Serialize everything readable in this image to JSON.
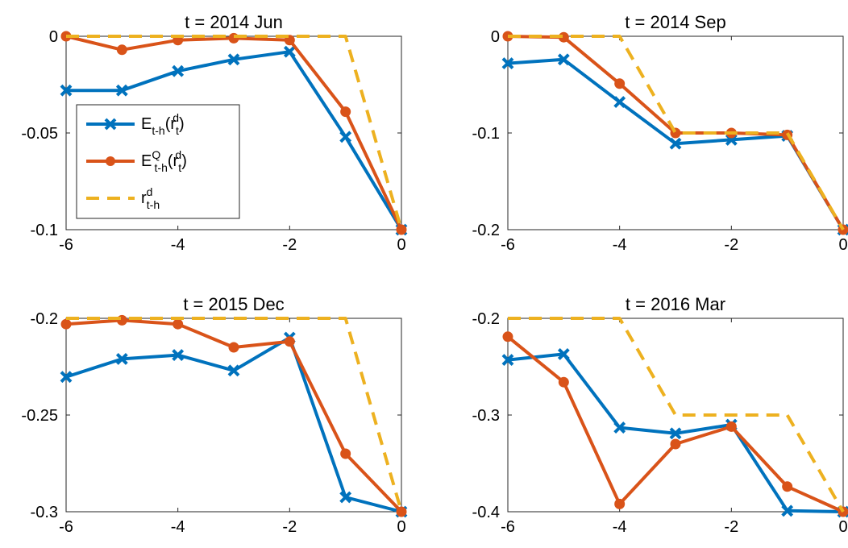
{
  "chart_data": [
    {
      "type": "line",
      "title": "t = 2014 Jun",
      "x": [
        -6,
        -5,
        -4,
        -3,
        -2,
        -1,
        0
      ],
      "series": [
        {
          "name": "E_{t-h}(r_{t}^{d})",
          "color": "#0072BD",
          "marker": "x",
          "linestyle": "-",
          "values": [
            -0.028,
            -0.028,
            -0.018,
            -0.012,
            -0.008,
            -0.052,
            -0.1
          ]
        },
        {
          "name": "E^{Q}_{t-h}(r_{t}^{d})",
          "color": "#D95319",
          "marker": "o",
          "linestyle": "-",
          "values": [
            0,
            -0.007,
            -0.002,
            -0.001,
            -0.002,
            -0.039,
            -0.1
          ]
        },
        {
          "name": "r^{d}_{t-h}",
          "color": "#EDB120",
          "marker": "none",
          "linestyle": "--",
          "values": [
            0,
            0,
            0,
            0,
            0,
            0,
            -0.1
          ]
        }
      ],
      "xlim": [
        -6,
        0
      ],
      "xticks": [
        -6,
        -4,
        -2,
        0
      ],
      "ylim": [
        -0.1,
        0
      ],
      "yticks": [
        -0.1,
        -0.05,
        0
      ],
      "legend": "west"
    },
    {
      "type": "line",
      "title": "t = 2014 Sep",
      "x": [
        -6,
        -5,
        -4,
        -3,
        -2,
        -1,
        0
      ],
      "series": [
        {
          "color": "#0072BD",
          "marker": "x",
          "linestyle": "-",
          "values": [
            -0.028,
            -0.024,
            -0.068,
            -0.111,
            -0.107,
            -0.103,
            -0.2
          ]
        },
        {
          "color": "#D95319",
          "marker": "o",
          "linestyle": "-",
          "values": [
            0,
            -0.001,
            -0.049,
            -0.1,
            -0.1,
            -0.102,
            -0.2
          ]
        },
        {
          "color": "#EDB120",
          "marker": "none",
          "linestyle": "--",
          "values": [
            0,
            0,
            0,
            -0.1,
            -0.1,
            -0.1,
            -0.2
          ]
        }
      ],
      "xlim": [
        -6,
        0
      ],
      "xticks": [
        -6,
        -4,
        -2,
        0
      ],
      "ylim": [
        -0.2,
        0
      ],
      "yticks": [
        -0.2,
        -0.1,
        0
      ]
    },
    {
      "type": "line",
      "title": "t = 2015 Dec",
      "x": [
        -6,
        -5,
        -4,
        -3,
        -2,
        -1,
        0
      ],
      "series": [
        {
          "color": "#0072BD",
          "marker": "x",
          "linestyle": "-",
          "values": [
            -0.2303,
            -0.221,
            -0.219,
            -0.227,
            -0.21,
            -0.2925,
            -0.3
          ]
        },
        {
          "color": "#D95319",
          "marker": "o",
          "linestyle": "-",
          "values": [
            -0.203,
            -0.201,
            -0.203,
            -0.215,
            -0.212,
            -0.27,
            -0.3
          ]
        },
        {
          "color": "#EDB120",
          "marker": "none",
          "linestyle": "--",
          "values": [
            -0.2,
            -0.2,
            -0.2,
            -0.2,
            -0.2,
            -0.2,
            -0.3
          ]
        }
      ],
      "xlim": [
        -6,
        0
      ],
      "xticks": [
        -6,
        -4,
        -2,
        0
      ],
      "ylim": [
        -0.3,
        -0.2
      ],
      "yticks": [
        -0.3,
        -0.25,
        -0.2
      ]
    },
    {
      "type": "line",
      "title": "t = 2016 Mar",
      "x": [
        -6,
        -5,
        -4,
        -3,
        -2,
        -1,
        0
      ],
      "series": [
        {
          "color": "#0072BD",
          "marker": "x",
          "linestyle": "-",
          "values": [
            -0.243,
            -0.237,
            -0.313,
            -0.319,
            -0.31,
            -0.399,
            -0.4
          ]
        },
        {
          "color": "#D95319",
          "marker": "o",
          "linestyle": "-",
          "values": [
            -0.219,
            -0.266,
            -0.392,
            -0.33,
            -0.312,
            -0.374,
            -0.4
          ]
        },
        {
          "color": "#EDB120",
          "marker": "none",
          "linestyle": "--",
          "values": [
            -0.2,
            -0.2,
            -0.2,
            -0.3,
            -0.3,
            -0.3,
            -0.4
          ]
        }
      ],
      "xlim": [
        -6,
        0
      ],
      "xticks": [
        -6,
        -4,
        -2,
        0
      ],
      "ylim": [
        -0.4,
        -0.2
      ],
      "yticks": [
        -0.4,
        -0.3,
        -0.2
      ]
    }
  ]
}
